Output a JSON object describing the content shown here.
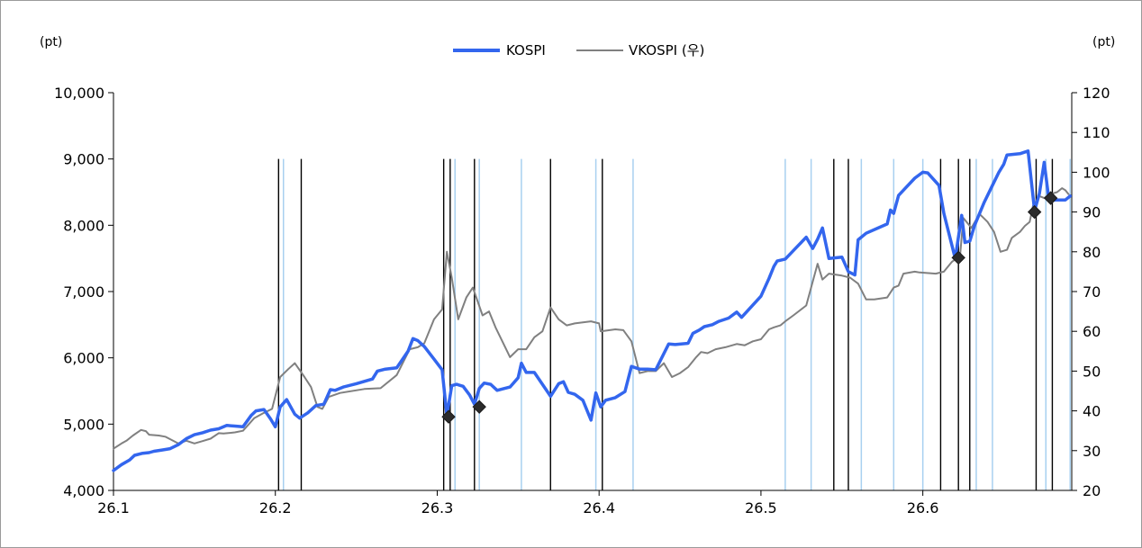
{
  "chart_data": {
    "type": "line",
    "left_axis": {
      "unit": "(pt)",
      "ylim": [
        4000,
        10000
      ],
      "ticks": [
        "4,000",
        "5,000",
        "6,000",
        "7,000",
        "8,000",
        "9,000",
        "10,000"
      ],
      "tick_values": [
        4000,
        5000,
        6000,
        7000,
        8000,
        9000,
        10000
      ]
    },
    "right_axis": {
      "unit": "(pt)",
      "ylim": [
        20,
        120
      ],
      "ticks": [
        "20",
        "30",
        "40",
        "50",
        "60",
        "70",
        "80",
        "90",
        "100",
        "110",
        "120"
      ],
      "tick_values": [
        20,
        30,
        40,
        50,
        60,
        70,
        80,
        90,
        100,
        110,
        120
      ]
    },
    "x_axis": {
      "xlim": [
        26.1,
        26.692
      ],
      "ticks": [
        "26.1",
        "26.2",
        "26.3",
        "26.4",
        "26.5",
        "26.6"
      ],
      "tick_values": [
        26.1,
        26.2,
        26.3,
        26.4,
        26.5,
        26.6
      ]
    },
    "legend": {
      "placement": "top-center"
    },
    "series": [
      {
        "name": "KOSPI",
        "axis": "left",
        "color": "#3366ee",
        "points": [
          [
            26.1,
            4300
          ],
          [
            26.105,
            4390
          ],
          [
            26.11,
            4460
          ],
          [
            26.113,
            4530
          ],
          [
            26.118,
            4560
          ],
          [
            26.122,
            4570
          ],
          [
            26.125,
            4590
          ],
          [
            26.13,
            4610
          ],
          [
            26.135,
            4630
          ],
          [
            26.14,
            4690
          ],
          [
            26.145,
            4780
          ],
          [
            26.15,
            4840
          ],
          [
            26.155,
            4870
          ],
          [
            26.16,
            4910
          ],
          [
            26.165,
            4930
          ],
          [
            26.17,
            4980
          ],
          [
            26.175,
            4970
          ],
          [
            26.18,
            4960
          ],
          [
            26.185,
            5130
          ],
          [
            26.188,
            5200
          ],
          [
            26.193,
            5220
          ],
          [
            26.197,
            5080
          ],
          [
            26.2,
            4960
          ],
          [
            26.203,
            5260
          ],
          [
            26.207,
            5370
          ],
          [
            26.212,
            5150
          ],
          [
            26.215,
            5090
          ],
          [
            26.22,
            5170
          ],
          [
            26.225,
            5280
          ],
          [
            26.23,
            5300
          ],
          [
            26.234,
            5520
          ],
          [
            26.237,
            5510
          ],
          [
            26.242,
            5560
          ],
          [
            26.25,
            5610
          ],
          [
            26.26,
            5680
          ],
          [
            26.263,
            5800
          ],
          [
            26.268,
            5830
          ],
          [
            26.275,
            5850
          ],
          [
            26.282,
            6100
          ],
          [
            26.285,
            6290
          ],
          [
            26.288,
            6260
          ],
          [
            26.292,
            6170
          ],
          [
            26.298,
            5980
          ],
          [
            26.303,
            5820
          ],
          [
            26.306,
            5130
          ],
          [
            26.309,
            5580
          ],
          [
            26.312,
            5600
          ],
          [
            26.316,
            5570
          ],
          [
            26.32,
            5440
          ],
          [
            26.323,
            5300
          ],
          [
            26.326,
            5540
          ],
          [
            26.329,
            5620
          ],
          [
            26.333,
            5600
          ],
          [
            26.337,
            5510
          ],
          [
            26.345,
            5560
          ],
          [
            26.35,
            5700
          ],
          [
            26.352,
            5920
          ],
          [
            26.355,
            5780
          ],
          [
            26.36,
            5780
          ],
          [
            26.37,
            5420
          ],
          [
            26.375,
            5610
          ],
          [
            26.378,
            5640
          ],
          [
            26.381,
            5480
          ],
          [
            26.385,
            5450
          ],
          [
            26.39,
            5360
          ],
          [
            26.395,
            5060
          ],
          [
            26.398,
            5470
          ],
          [
            26.401,
            5260
          ],
          [
            26.404,
            5360
          ],
          [
            26.41,
            5400
          ],
          [
            26.416,
            5490
          ],
          [
            26.42,
            5870
          ],
          [
            26.425,
            5830
          ],
          [
            26.43,
            5830
          ],
          [
            26.435,
            5820
          ],
          [
            26.443,
            6210
          ],
          [
            26.447,
            6200
          ],
          [
            26.455,
            6220
          ],
          [
            26.458,
            6370
          ],
          [
            26.462,
            6420
          ],
          [
            26.465,
            6470
          ],
          [
            26.47,
            6500
          ],
          [
            26.474,
            6550
          ],
          [
            26.48,
            6600
          ],
          [
            26.485,
            6690
          ],
          [
            26.488,
            6610
          ],
          [
            26.5,
            6930
          ],
          [
            26.505,
            7200
          ],
          [
            26.508,
            7380
          ],
          [
            26.51,
            7460
          ],
          [
            26.515,
            7490
          ],
          [
            26.528,
            7820
          ],
          [
            26.532,
            7650
          ],
          [
            26.535,
            7790
          ],
          [
            26.538,
            7960
          ],
          [
            26.542,
            7500
          ],
          [
            26.55,
            7520
          ],
          [
            26.554,
            7300
          ],
          [
            26.558,
            7250
          ],
          [
            26.56,
            7780
          ],
          [
            26.565,
            7880
          ],
          [
            26.578,
            8020
          ],
          [
            26.58,
            8230
          ],
          [
            26.582,
            8180
          ],
          [
            26.585,
            8450
          ],
          [
            26.59,
            8580
          ],
          [
            26.595,
            8710
          ],
          [
            26.6,
            8800
          ],
          [
            26.603,
            8790
          ],
          [
            26.61,
            8600
          ],
          [
            26.613,
            8180
          ],
          [
            26.62,
            7500
          ],
          [
            26.624,
            8150
          ],
          [
            26.626,
            7740
          ],
          [
            26.629,
            7760
          ],
          [
            26.632,
            8000
          ],
          [
            26.638,
            8350
          ],
          [
            26.642,
            8550
          ],
          [
            26.647,
            8800
          ],
          [
            26.65,
            8920
          ],
          [
            26.652,
            9060
          ],
          [
            26.66,
            9080
          ],
          [
            26.665,
            9120
          ],
          [
            26.669,
            8220
          ],
          [
            26.672,
            8480
          ],
          [
            26.675,
            8950
          ],
          [
            26.678,
            8370
          ],
          [
            26.682,
            8380
          ],
          [
            26.686,
            8380
          ],
          [
            26.688,
            8380
          ],
          [
            26.691,
            8440
          ]
        ]
      },
      {
        "name": "VKOSPI (우)",
        "axis": "right",
        "color": "#808080",
        "points": [
          [
            26.1,
            30.5
          ],
          [
            26.105,
            31.8
          ],
          [
            26.108,
            32.5
          ],
          [
            26.112,
            33.8
          ],
          [
            26.117,
            35.2
          ],
          [
            26.12,
            34.9
          ],
          [
            26.122,
            34.0
          ],
          [
            26.128,
            33.8
          ],
          [
            26.132,
            33.5
          ],
          [
            26.14,
            31.8
          ],
          [
            26.145,
            32.5
          ],
          [
            26.15,
            31.8
          ],
          [
            26.155,
            32.4
          ],
          [
            26.16,
            33.0
          ],
          [
            26.165,
            34.4
          ],
          [
            26.168,
            34.3
          ],
          [
            26.175,
            34.6
          ],
          [
            26.18,
            35.0
          ],
          [
            26.187,
            38.2
          ],
          [
            26.193,
            39.5
          ],
          [
            26.198,
            40.5
          ],
          [
            26.203,
            48.5
          ],
          [
            26.208,
            50.5
          ],
          [
            26.212,
            52.0
          ],
          [
            26.218,
            48.5
          ],
          [
            26.222,
            46.0
          ],
          [
            26.226,
            41.0
          ],
          [
            26.229,
            40.5
          ],
          [
            26.233,
            43.5
          ],
          [
            26.24,
            44.5
          ],
          [
            26.255,
            45.5
          ],
          [
            26.265,
            45.7
          ],
          [
            26.275,
            49.0
          ],
          [
            26.283,
            55.5
          ],
          [
            26.288,
            56.0
          ],
          [
            26.292,
            57.0
          ],
          [
            26.298,
            63.0
          ],
          [
            26.303,
            65.5
          ],
          [
            26.306,
            80.0
          ],
          [
            26.309,
            73.5
          ],
          [
            26.313,
            63.0
          ],
          [
            26.318,
            68.5
          ],
          [
            26.322,
            71.0
          ],
          [
            26.328,
            64.0
          ],
          [
            26.332,
            65.0
          ],
          [
            26.336,
            61.0
          ],
          [
            26.345,
            53.5
          ],
          [
            26.35,
            55.5
          ],
          [
            26.355,
            55.5
          ],
          [
            26.36,
            58.5
          ],
          [
            26.365,
            60.0
          ],
          [
            26.37,
            66.0
          ],
          [
            26.375,
            63.0
          ],
          [
            26.38,
            61.5
          ],
          [
            26.385,
            62.0
          ],
          [
            26.395,
            62.5
          ],
          [
            26.4,
            62.0
          ],
          [
            26.401,
            60.0
          ],
          [
            26.41,
            60.5
          ],
          [
            26.415,
            60.3
          ],
          [
            26.42,
            57.5
          ],
          [
            26.425,
            49.5
          ],
          [
            26.43,
            50.0
          ],
          [
            26.435,
            50.0
          ],
          [
            26.44,
            52.0
          ],
          [
            26.445,
            48.5
          ],
          [
            26.45,
            49.5
          ],
          [
            26.455,
            51.0
          ],
          [
            26.46,
            53.5
          ],
          [
            26.463,
            54.8
          ],
          [
            26.467,
            54.5
          ],
          [
            26.472,
            55.5
          ],
          [
            26.478,
            56.0
          ],
          [
            26.485,
            56.8
          ],
          [
            26.49,
            56.5
          ],
          [
            26.495,
            57.5
          ],
          [
            26.5,
            58.0
          ],
          [
            26.505,
            60.5
          ],
          [
            26.508,
            61.0
          ],
          [
            26.512,
            61.5
          ],
          [
            26.515,
            62.5
          ],
          [
            26.52,
            64.0
          ],
          [
            26.528,
            66.5
          ],
          [
            26.535,
            77.0
          ],
          [
            26.538,
            73.0
          ],
          [
            26.542,
            74.5
          ],
          [
            26.55,
            74.0
          ],
          [
            26.555,
            73.5
          ],
          [
            26.56,
            72.0
          ],
          [
            26.565,
            68.0
          ],
          [
            26.57,
            68.0
          ],
          [
            26.578,
            68.5
          ],
          [
            26.582,
            71.0
          ],
          [
            26.585,
            71.5
          ],
          [
            26.588,
            74.5
          ],
          [
            26.595,
            75.0
          ],
          [
            26.598,
            74.8
          ],
          [
            26.608,
            74.5
          ],
          [
            26.613,
            75.0
          ],
          [
            26.618,
            77.5
          ],
          [
            26.623,
            79.0
          ],
          [
            26.625,
            88.5
          ],
          [
            26.63,
            86.0
          ],
          [
            26.635,
            89.5
          ],
          [
            26.64,
            87.5
          ],
          [
            26.644,
            85.0
          ],
          [
            26.648,
            80.0
          ],
          [
            26.652,
            80.5
          ],
          [
            26.655,
            83.5
          ],
          [
            26.66,
            85.0
          ],
          [
            26.663,
            86.5
          ],
          [
            26.666,
            87.5
          ],
          [
            26.668,
            91.5
          ],
          [
            26.672,
            94.0
          ],
          [
            26.675,
            93.5
          ],
          [
            26.679,
            94.5
          ],
          [
            26.683,
            95.0
          ],
          [
            26.686,
            96.0
          ],
          [
            26.688,
            95.5
          ],
          [
            26.69,
            94.5
          ]
        ]
      }
    ],
    "event_lines_black": [
      26.202,
      26.216,
      26.304,
      26.308,
      26.323,
      26.37,
      26.402,
      26.545,
      26.554,
      26.611,
      26.622,
      26.629,
      26.67,
      26.68
    ],
    "event_lines_lightblue": [
      26.205,
      26.311,
      26.326,
      26.352,
      26.398,
      26.421,
      26.515,
      26.531,
      26.562,
      26.582,
      26.6,
      26.633,
      26.643,
      26.676,
      26.691
    ],
    "markers": [
      {
        "x": 26.307,
        "y": 38.5,
        "axis": "right"
      },
      {
        "x": 26.326,
        "y": 41.0,
        "axis": "right"
      },
      {
        "x": 26.622,
        "y": 78.5,
        "axis": "right"
      },
      {
        "x": 26.669,
        "y": 90.0,
        "axis": "right"
      },
      {
        "x": 26.679,
        "y": 93.5,
        "axis": "right"
      }
    ]
  }
}
